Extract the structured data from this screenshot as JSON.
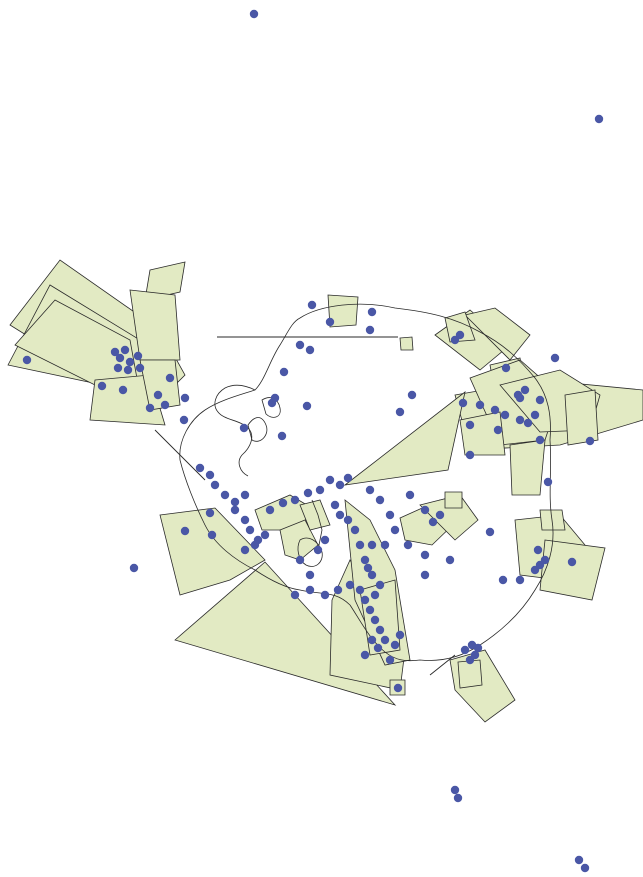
{
  "map": {
    "background_color": "#ffffff",
    "polygon_fill_color": "#e2eac3",
    "polygon_stroke_color": "#2a2a2a",
    "point_color": "#4a57a6",
    "coastline_color": "#2a2a2a"
  }
}
